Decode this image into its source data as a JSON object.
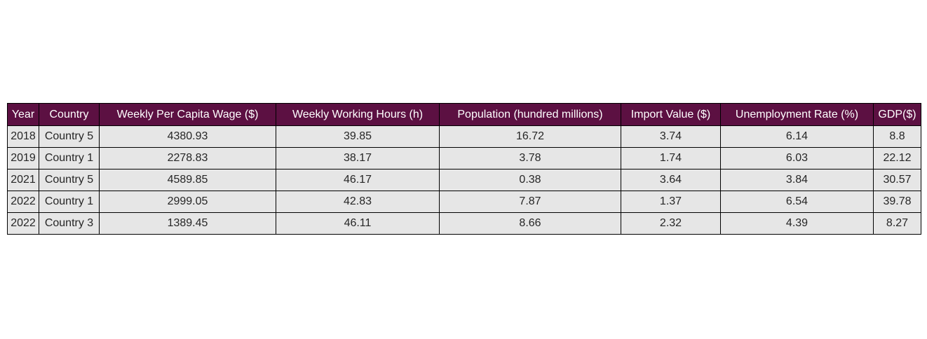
{
  "colors": {
    "header_bg": "#5c1042",
    "header_text": "#ffffff",
    "cell_bg": "#e6e6e6",
    "cell_text": "#262626",
    "border": "#000000"
  },
  "chart_data": {
    "type": "table",
    "columns": [
      "Year",
      "Country",
      "Weekly Per Capita Wage ($)",
      "Weekly Working Hours (h)",
      "Population (hundred millions)",
      "Import Value ($)",
      "Unemployment Rate (%)",
      "GDP($)"
    ],
    "rows": [
      [
        "2018",
        "Country 5",
        "4380.93",
        "39.85",
        "16.72",
        "3.74",
        "6.14",
        "8.8"
      ],
      [
        "2019",
        "Country 1",
        "2278.83",
        "38.17",
        "3.78",
        "1.74",
        "6.03",
        "22.12"
      ],
      [
        "2021",
        "Country 5",
        "4589.85",
        "46.17",
        "0.38",
        "3.64",
        "3.84",
        "30.57"
      ],
      [
        "2022",
        "Country 1",
        "2999.05",
        "42.83",
        "7.87",
        "1.37",
        "6.54",
        "39.78"
      ],
      [
        "2022",
        "Country 3",
        "1389.45",
        "46.11",
        "8.66",
        "2.32",
        "4.39",
        "8.27"
      ]
    ]
  }
}
